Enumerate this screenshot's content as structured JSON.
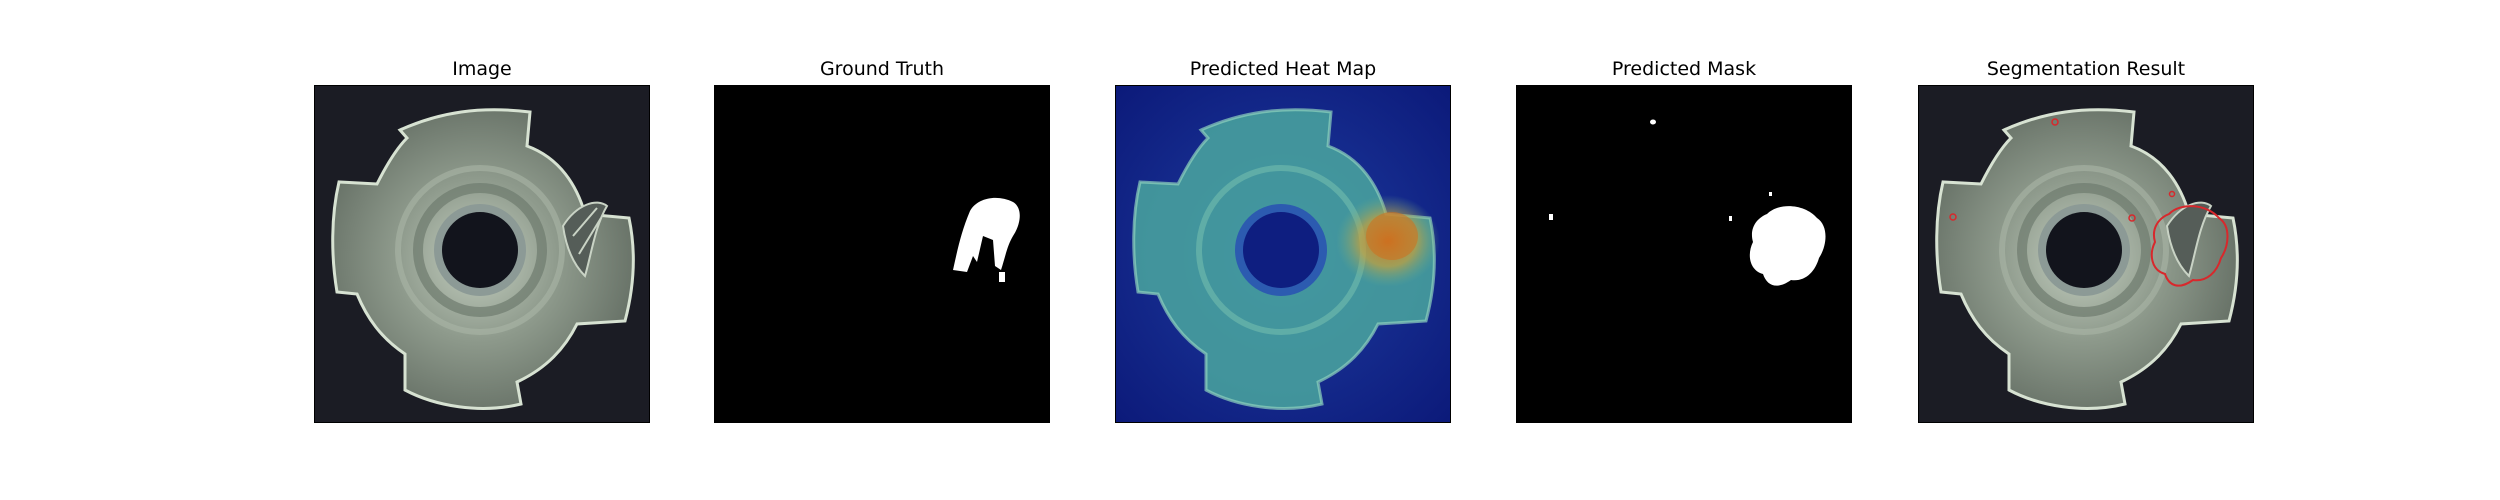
{
  "panels": [
    {
      "title": "Image"
    },
    {
      "title": "Ground Truth"
    },
    {
      "title": "Predicted Heat Map"
    },
    {
      "title": "Predicted Mask"
    },
    {
      "title": "Segmentation Result"
    }
  ],
  "colors": {
    "photo_background": "#1b1c24",
    "part_metal": "#8e9a8c",
    "mask_background": "#000000",
    "mask_foreground": "#ffffff",
    "heatmap_low": "#0c1a7a",
    "heatmap_mid": "#3fae9a",
    "heatmap_high": "#d0701e",
    "contour": "#d8282c"
  }
}
